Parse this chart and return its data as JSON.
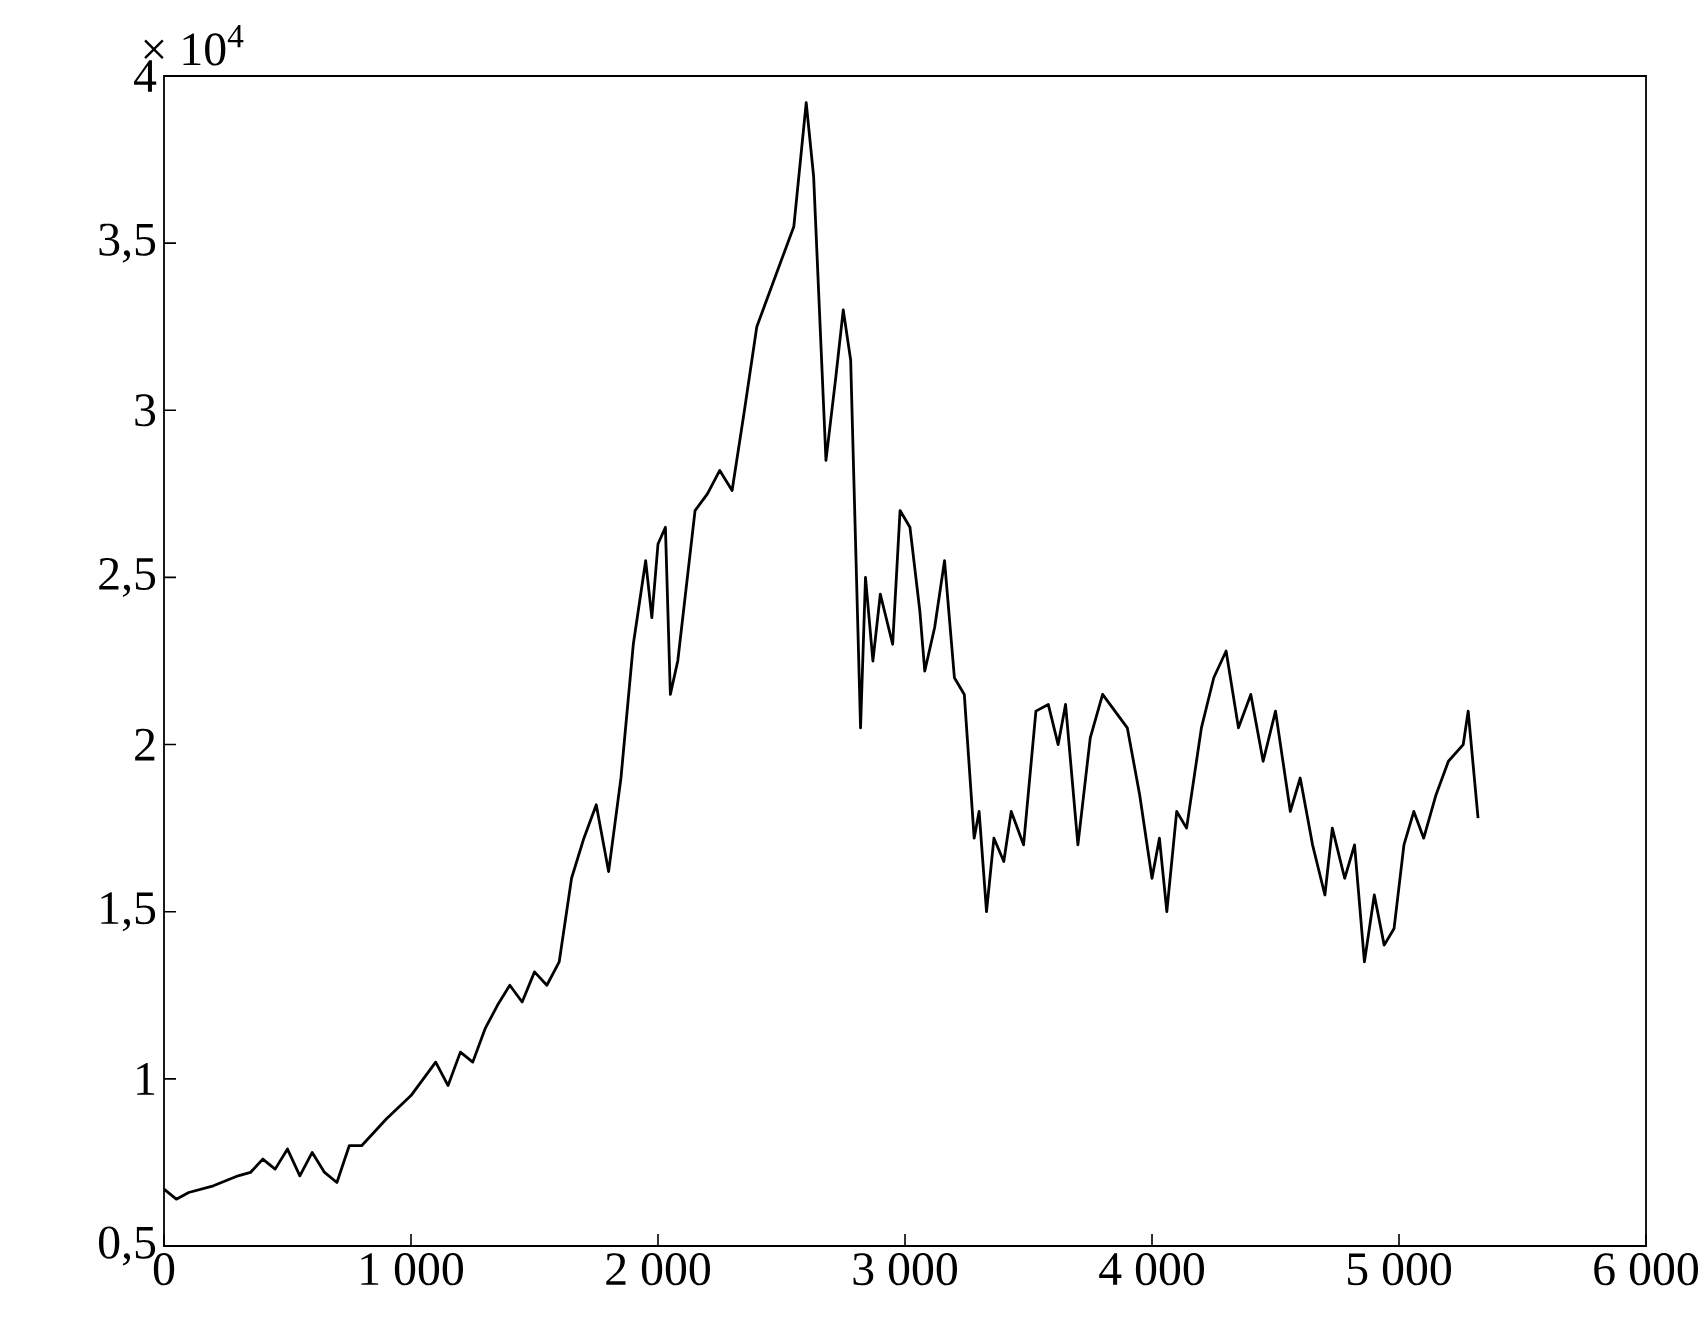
{
  "chart_data": {
    "type": "line",
    "annotations": [
      "× 10$^{4}$"
    ],
    "x": [
      0,
      50,
      100,
      200,
      300,
      350,
      400,
      450,
      500,
      550,
      600,
      650,
      700,
      750,
      800,
      900,
      1000,
      1050,
      1100,
      1150,
      1200,
      1250,
      1300,
      1350,
      1400,
      1450,
      1500,
      1550,
      1600,
      1650,
      1700,
      1750,
      1800,
      1850,
      1900,
      1950,
      1975,
      2000,
      2030,
      2050,
      2080,
      2150,
      2200,
      2250,
      2300,
      2350,
      2400,
      2450,
      2500,
      2550,
      2600,
      2630,
      2680,
      2720,
      2750,
      2780,
      2800,
      2820,
      2840,
      2870,
      2900,
      2950,
      2980,
      3020,
      3060,
      3080,
      3120,
      3160,
      3200,
      3240,
      3280,
      3300,
      3330,
      3360,
      3400,
      3430,
      3480,
      3530,
      3580,
      3620,
      3650,
      3700,
      3750,
      3800,
      3850,
      3900,
      3950,
      4000,
      4030,
      4060,
      4100,
      4140,
      4200,
      4250,
      4300,
      4350,
      4400,
      4450,
      4500,
      4560,
      4600,
      4650,
      4700,
      4730,
      4780,
      4820,
      4860,
      4900,
      4940,
      4980,
      5020,
      5060,
      5100,
      5150,
      5200,
      5260,
      5280,
      5320
    ],
    "series": [
      {
        "color": "#000000",
        "values": [
          0.67,
          0.64,
          0.66,
          0.68,
          0.71,
          0.72,
          0.76,
          0.73,
          0.79,
          0.71,
          0.78,
          0.72,
          0.69,
          0.8,
          0.8,
          0.88,
          0.95,
          1.0,
          1.05,
          0.98,
          1.08,
          1.05,
          1.15,
          1.22,
          1.28,
          1.23,
          1.32,
          1.28,
          1.35,
          1.6,
          1.72,
          1.82,
          1.62,
          1.9,
          2.3,
          2.55,
          2.38,
          2.6,
          2.65,
          2.15,
          2.25,
          2.7,
          2.75,
          2.82,
          2.76,
          3.0,
          3.25,
          3.35,
          3.45,
          3.55,
          3.92,
          3.7,
          2.85,
          3.1,
          3.3,
          3.15,
          2.6,
          2.05,
          2.5,
          2.25,
          2.45,
          2.3,
          2.7,
          2.65,
          2.4,
          2.22,
          2.35,
          2.55,
          2.2,
          2.15,
          1.72,
          1.8,
          1.5,
          1.72,
          1.65,
          1.8,
          1.7,
          2.1,
          2.12,
          2.0,
          2.12,
          1.7,
          2.02,
          2.15,
          2.1,
          2.05,
          1.85,
          1.6,
          1.72,
          1.5,
          1.8,
          1.75,
          2.05,
          2.2,
          2.28,
          2.05,
          2.15,
          1.95,
          2.1,
          1.8,
          1.9,
          1.7,
          1.55,
          1.75,
          1.6,
          1.7,
          1.35,
          1.55,
          1.4,
          1.45,
          1.7,
          1.8,
          1.72,
          1.85,
          1.95,
          2.0,
          2.1,
          1.78
        ]
      }
    ],
    "xlim": [
      0,
      6000
    ],
    "xticks": [
      {
        "value": 0,
        "label": "0"
      },
      {
        "value": 1000,
        "label": "1 000"
      },
      {
        "value": 2000,
        "label": "2 000"
      },
      {
        "value": 3000,
        "label": "3 000"
      },
      {
        "value": 4000,
        "label": "4 000"
      },
      {
        "value": 5000,
        "label": "5 000"
      },
      {
        "value": 6000,
        "label": "6 000"
      }
    ],
    "ylim": [
      0.5,
      4
    ],
    "yticks": [
      {
        "value": 0.5,
        "label": "0,5"
      },
      {
        "value": 1,
        "label": "1"
      },
      {
        "value": 1.5,
        "label": "1,5"
      },
      {
        "value": 2,
        "label": "2"
      },
      {
        "value": 2.5,
        "label": "2,5"
      },
      {
        "value": 3,
        "label": "3"
      },
      {
        "value": 3.5,
        "label": "3,5"
      },
      {
        "value": 4,
        "label": "4"
      }
    ],
    "grid": false,
    "legend": false,
    "marker": "none",
    "line_style": "solid"
  }
}
